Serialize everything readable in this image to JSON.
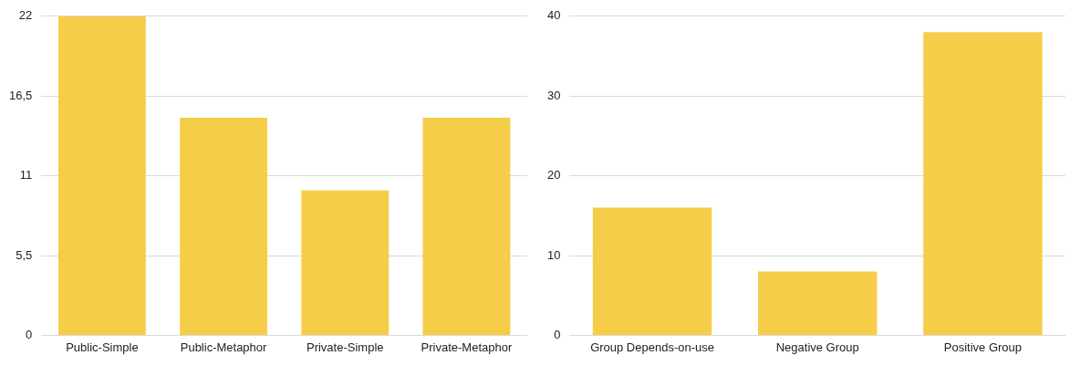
{
  "chart_data": [
    {
      "type": "bar",
      "categories": [
        "Public-Simple",
        "Public-Metaphor",
        "Private-Simple",
        "Private-Metaphor"
      ],
      "values": [
        22,
        15,
        10,
        15
      ],
      "color": "#f5cd48",
      "ylim": [
        0,
        22
      ],
      "yticks": [
        0,
        {
          "value": 5.5,
          "label": "5,5"
        },
        11,
        {
          "value": 16.5,
          "label": "16,5"
        },
        22
      ],
      "grid": "y"
    },
    {
      "type": "bar",
      "categories": [
        "Group Depends-on-use",
        "Negative Group",
        "Positive Group"
      ],
      "values": [
        16,
        8,
        38
      ],
      "color": "#f5cd48",
      "ylim": [
        0,
        40
      ],
      "yticks": [
        0,
        10,
        20,
        30,
        40
      ],
      "grid": "y"
    }
  ]
}
